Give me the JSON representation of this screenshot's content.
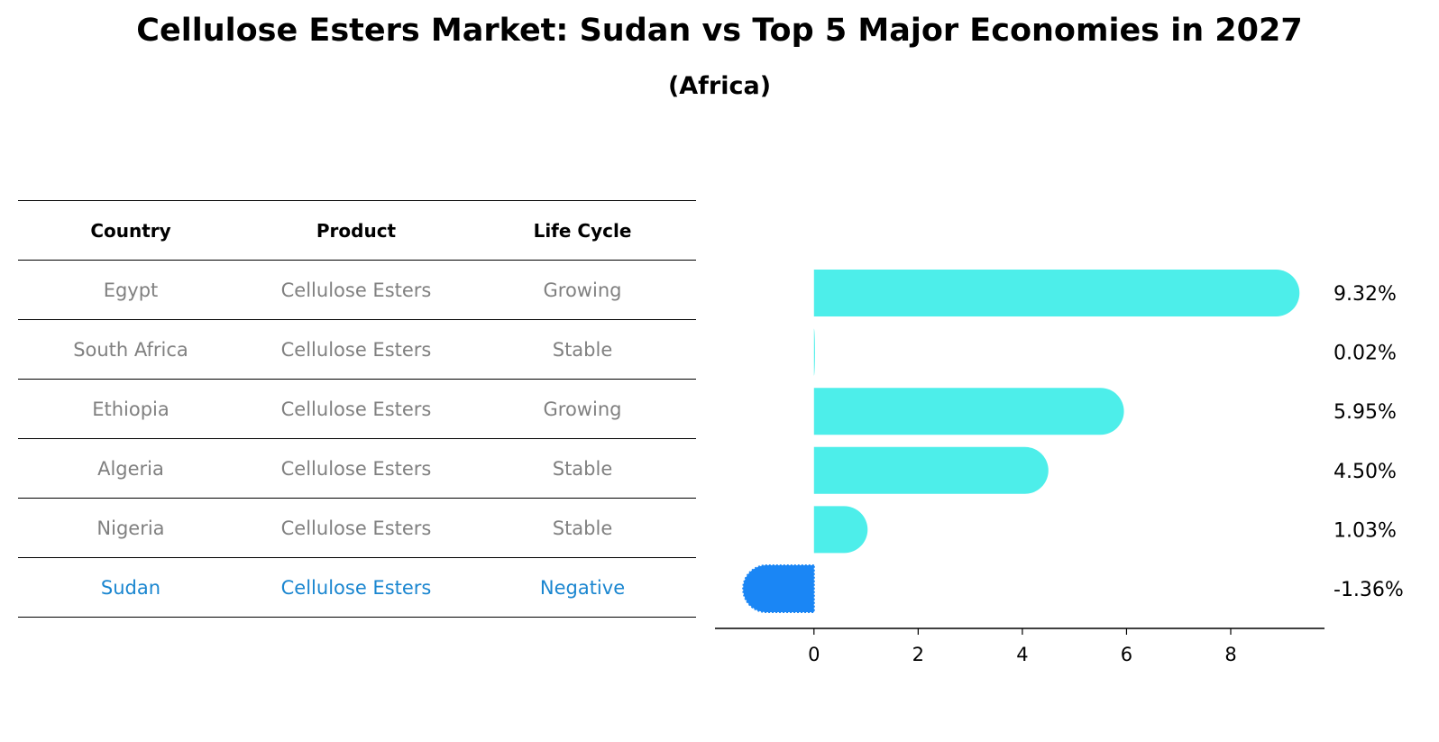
{
  "title": "Cellulose Esters Market: Sudan vs Top 5 Major Economies in 2027",
  "subtitle": "(Africa)",
  "table": {
    "headers": [
      "Country",
      "Product",
      "Life Cycle"
    ],
    "rows": [
      {
        "country": "Egypt",
        "product": "Cellulose Esters",
        "life_cycle": "Growing"
      },
      {
        "country": "South Africa",
        "product": "Cellulose Esters",
        "life_cycle": "Stable"
      },
      {
        "country": "Ethiopia",
        "product": "Cellulose Esters",
        "life_cycle": "Growing"
      },
      {
        "country": "Algeria",
        "product": "Cellulose Esters",
        "life_cycle": "Stable"
      },
      {
        "country": "Nigeria",
        "product": "Cellulose Esters",
        "life_cycle": "Stable"
      },
      {
        "country": "Sudan",
        "product": "Cellulose Esters",
        "life_cycle": "Negative"
      }
    ]
  },
  "colors": {
    "bar": "#4deeea",
    "highlight_bar": "#1a86f5",
    "highlight_text": "#1a86d0",
    "row_text": "#808080"
  },
  "chart_data": {
    "type": "bar",
    "orientation": "horizontal",
    "categories": [
      "Egypt",
      "South Africa",
      "Ethiopia",
      "Algeria",
      "Nigeria",
      "Sudan"
    ],
    "values": [
      9.32,
      0.02,
      5.95,
      4.5,
      1.03,
      -1.36
    ],
    "value_labels": [
      "9.32%",
      "0.02%",
      "5.95%",
      "4.50%",
      "1.03%",
      "-1.36%"
    ],
    "highlight": "Sudan",
    "xlim": [
      -1.9,
      9.8
    ],
    "xticks": [
      0,
      2,
      4,
      6,
      8
    ],
    "grid": false
  }
}
